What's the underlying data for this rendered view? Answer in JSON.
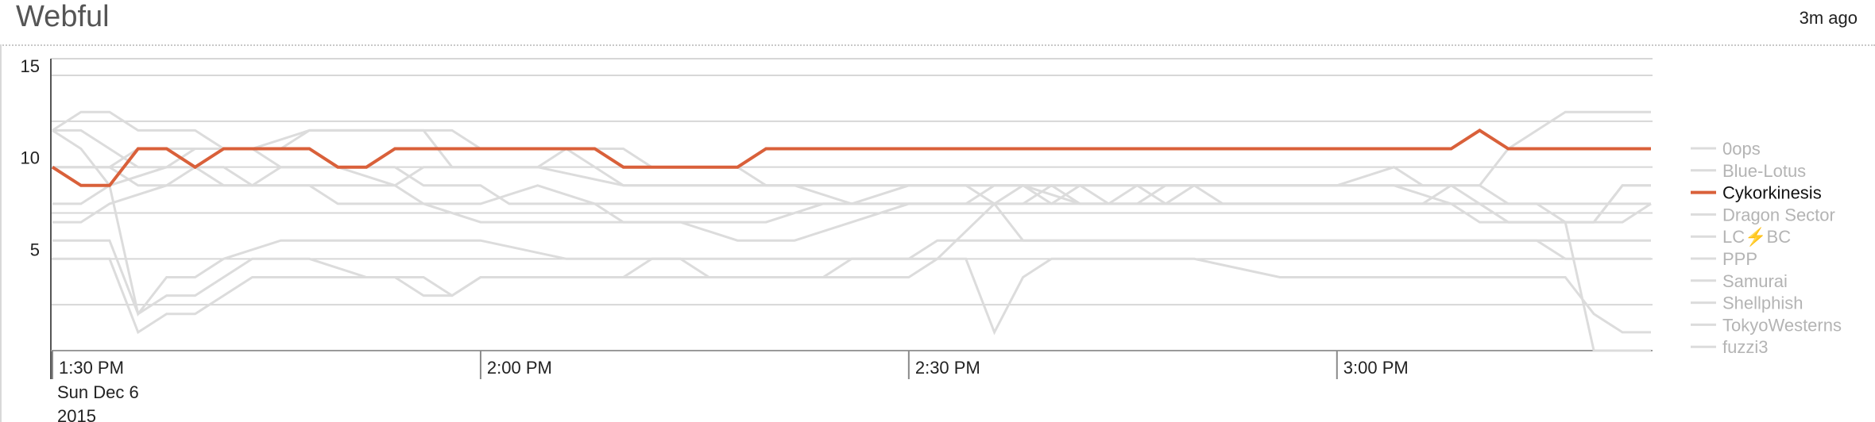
{
  "panel": {
    "title": "Webful",
    "updated": "3m ago"
  },
  "chart_data": {
    "type": "line",
    "ylim": [
      0,
      15
    ],
    "yticks": [
      5,
      10,
      15
    ],
    "x_start_minutes": 0,
    "x_end_minutes": 112,
    "xticks": [
      {
        "minute": 0,
        "label": "1:30 PM",
        "sub": [
          "Sun Dec 6",
          "2015"
        ]
      },
      {
        "minute": 30,
        "label": "2:00 PM",
        "sub": []
      },
      {
        "minute": 60,
        "label": "2:30 PM",
        "sub": []
      },
      {
        "minute": 90,
        "label": "3:00 PM",
        "sub": []
      }
    ],
    "highlight": "Cykorkinesis",
    "colors": {
      "highlight": "#d9603a",
      "muted": "#dcdcdc",
      "grid": "#d7d7d7",
      "axis": "#555555"
    },
    "legend_position": "right",
    "series": [
      {
        "name": "0ops",
        "points": [
          [
            0,
            12
          ],
          [
            2,
            11
          ],
          [
            4,
            9
          ],
          [
            6,
            2
          ],
          [
            8,
            4
          ],
          [
            10,
            4
          ],
          [
            12,
            5
          ],
          [
            16,
            6
          ],
          [
            30,
            6
          ],
          [
            36,
            5
          ],
          [
            48,
            5
          ],
          [
            60,
            5
          ],
          [
            62,
            6
          ],
          [
            70,
            6
          ],
          [
            80,
            6
          ],
          [
            90,
            6
          ],
          [
            100,
            6
          ],
          [
            104,
            6
          ],
          [
            106,
            5
          ],
          [
            108,
            5
          ],
          [
            110,
            5
          ],
          [
            112,
            5
          ]
        ]
      },
      {
        "name": "Blue-Lotus",
        "points": [
          [
            0,
            8
          ],
          [
            2,
            8
          ],
          [
            4,
            9
          ],
          [
            8,
            10
          ],
          [
            10,
            11
          ],
          [
            14,
            11
          ],
          [
            18,
            12
          ],
          [
            28,
            12
          ],
          [
            30,
            11
          ],
          [
            36,
            11
          ],
          [
            40,
            9
          ],
          [
            44,
            9
          ],
          [
            50,
            9
          ],
          [
            60,
            9
          ],
          [
            70,
            9
          ],
          [
            80,
            9
          ],
          [
            90,
            9
          ],
          [
            96,
            9
          ],
          [
            100,
            9
          ],
          [
            102,
            11
          ],
          [
            104,
            12
          ],
          [
            106,
            13
          ],
          [
            108,
            13
          ],
          [
            110,
            13
          ],
          [
            112,
            13
          ]
        ]
      },
      {
        "name": "Cykorkinesis",
        "points": [
          [
            0,
            10
          ],
          [
            2,
            9
          ],
          [
            4,
            9
          ],
          [
            6,
            11
          ],
          [
            8,
            11
          ],
          [
            10,
            10
          ],
          [
            12,
            11
          ],
          [
            18,
            11
          ],
          [
            20,
            10
          ],
          [
            22,
            10
          ],
          [
            24,
            11
          ],
          [
            38,
            11
          ],
          [
            40,
            10
          ],
          [
            48,
            10
          ],
          [
            50,
            11
          ],
          [
            98,
            11
          ],
          [
            100,
            12
          ],
          [
            102,
            11
          ],
          [
            112,
            11
          ]
        ]
      },
      {
        "name": "Dragon Sector",
        "points": [
          [
            0,
            12
          ],
          [
            2,
            13
          ],
          [
            4,
            13
          ],
          [
            6,
            12
          ],
          [
            10,
            12
          ],
          [
            12,
            11
          ],
          [
            16,
            11
          ],
          [
            18,
            12
          ],
          [
            26,
            12
          ],
          [
            28,
            10
          ],
          [
            30,
            10
          ],
          [
            34,
            10
          ],
          [
            36,
            11
          ],
          [
            40,
            11
          ],
          [
            42,
            10
          ],
          [
            48,
            10
          ],
          [
            50,
            9
          ],
          [
            60,
            9
          ],
          [
            70,
            9
          ],
          [
            80,
            9
          ],
          [
            84,
            9
          ],
          [
            86,
            9
          ],
          [
            90,
            9
          ],
          [
            94,
            10
          ],
          [
            96,
            9
          ],
          [
            100,
            9
          ],
          [
            102,
            8
          ],
          [
            104,
            8
          ],
          [
            106,
            8
          ],
          [
            108,
            8
          ],
          [
            110,
            8
          ],
          [
            112,
            8
          ]
        ]
      },
      {
        "name": "LC⚡BC",
        "points": [
          [
            0,
            10
          ],
          [
            4,
            10
          ],
          [
            6,
            11
          ],
          [
            10,
            11
          ],
          [
            14,
            11
          ],
          [
            16,
            10
          ],
          [
            20,
            10
          ],
          [
            24,
            9
          ],
          [
            26,
            8
          ],
          [
            30,
            8
          ],
          [
            34,
            9
          ],
          [
            38,
            8
          ],
          [
            40,
            7
          ],
          [
            44,
            7
          ],
          [
            50,
            7
          ],
          [
            54,
            8
          ],
          [
            60,
            8
          ],
          [
            64,
            8
          ],
          [
            66,
            9
          ],
          [
            68,
            9
          ],
          [
            72,
            8
          ],
          [
            76,
            8
          ],
          [
            78,
            9
          ],
          [
            80,
            9
          ],
          [
            82,
            8
          ],
          [
            84,
            8
          ],
          [
            88,
            8
          ],
          [
            92,
            8
          ],
          [
            96,
            8
          ],
          [
            98,
            9
          ],
          [
            100,
            8
          ],
          [
            102,
            7
          ],
          [
            104,
            7
          ],
          [
            106,
            7
          ],
          [
            108,
            7
          ],
          [
            110,
            9
          ],
          [
            112,
            9
          ]
        ]
      },
      {
        "name": "PPP",
        "points": [
          [
            0,
            10
          ],
          [
            4,
            10
          ],
          [
            6,
            9
          ],
          [
            8,
            9
          ],
          [
            10,
            10
          ],
          [
            12,
            10
          ],
          [
            14,
            9
          ],
          [
            18,
            9
          ],
          [
            24,
            9
          ],
          [
            26,
            10
          ],
          [
            30,
            10
          ],
          [
            34,
            10
          ],
          [
            40,
            9
          ],
          [
            44,
            9
          ],
          [
            48,
            9
          ],
          [
            52,
            9
          ],
          [
            56,
            8
          ],
          [
            60,
            9
          ],
          [
            64,
            9
          ],
          [
            66,
            8
          ],
          [
            68,
            9
          ],
          [
            70,
            8
          ],
          [
            72,
            9
          ],
          [
            74,
            8
          ],
          [
            76,
            9
          ],
          [
            78,
            8
          ],
          [
            80,
            9
          ],
          [
            82,
            9
          ],
          [
            86,
            9
          ],
          [
            90,
            9
          ],
          [
            94,
            9
          ],
          [
            98,
            8
          ],
          [
            100,
            7
          ],
          [
            104,
            7
          ],
          [
            106,
            7
          ],
          [
            108,
            7
          ],
          [
            110,
            7
          ],
          [
            112,
            8
          ]
        ]
      },
      {
        "name": "Samurai",
        "points": [
          [
            0,
            7
          ],
          [
            2,
            7
          ],
          [
            4,
            8
          ],
          [
            8,
            9
          ],
          [
            12,
            9
          ],
          [
            16,
            9
          ],
          [
            18,
            9
          ],
          [
            20,
            8
          ],
          [
            24,
            8
          ],
          [
            26,
            8
          ],
          [
            30,
            7
          ],
          [
            36,
            7
          ],
          [
            40,
            7
          ],
          [
            44,
            7
          ],
          [
            48,
            6
          ],
          [
            52,
            6
          ],
          [
            56,
            7
          ],
          [
            60,
            8
          ],
          [
            62,
            8
          ],
          [
            64,
            8
          ],
          [
            66,
            8
          ],
          [
            68,
            8
          ],
          [
            70,
            9
          ],
          [
            72,
            8
          ],
          [
            76,
            8
          ],
          [
            80,
            8
          ],
          [
            84,
            8
          ],
          [
            88,
            8
          ],
          [
            92,
            8
          ],
          [
            96,
            8
          ],
          [
            100,
            8
          ],
          [
            102,
            7
          ],
          [
            104,
            7
          ],
          [
            108,
            7
          ],
          [
            110,
            9
          ],
          [
            112,
            9
          ]
        ]
      },
      {
        "name": "Shellphish",
        "points": [
          [
            0,
            5
          ],
          [
            4,
            5
          ],
          [
            6,
            1
          ],
          [
            8,
            2
          ],
          [
            10,
            2
          ],
          [
            14,
            4
          ],
          [
            18,
            4
          ],
          [
            20,
            4
          ],
          [
            24,
            4
          ],
          [
            26,
            3
          ],
          [
            28,
            3
          ],
          [
            30,
            4
          ],
          [
            36,
            4
          ],
          [
            40,
            4
          ],
          [
            42,
            4
          ],
          [
            44,
            4
          ],
          [
            48,
            4
          ],
          [
            52,
            4
          ],
          [
            56,
            4
          ],
          [
            60,
            4
          ],
          [
            62,
            5
          ],
          [
            66,
            8
          ],
          [
            68,
            6
          ],
          [
            70,
            6
          ],
          [
            76,
            6
          ],
          [
            80,
            6
          ],
          [
            84,
            6
          ],
          [
            88,
            6
          ],
          [
            90,
            6
          ],
          [
            94,
            6
          ],
          [
            96,
            6
          ],
          [
            100,
            6
          ],
          [
            102,
            6
          ],
          [
            104,
            6
          ],
          [
            106,
            6
          ],
          [
            108,
            6
          ],
          [
            110,
            6
          ],
          [
            112,
            6
          ]
        ]
      },
      {
        "name": "TokyoWesterns",
        "points": [
          [
            0,
            6
          ],
          [
            4,
            6
          ],
          [
            6,
            2
          ],
          [
            8,
            3
          ],
          [
            10,
            3
          ],
          [
            14,
            5
          ],
          [
            18,
            5
          ],
          [
            22,
            4
          ],
          [
            24,
            4
          ],
          [
            26,
            4
          ],
          [
            28,
            3
          ],
          [
            30,
            4
          ],
          [
            34,
            4
          ],
          [
            38,
            4
          ],
          [
            40,
            4
          ],
          [
            42,
            5
          ],
          [
            44,
            5
          ],
          [
            46,
            4
          ],
          [
            50,
            4
          ],
          [
            54,
            4
          ],
          [
            56,
            5
          ],
          [
            60,
            5
          ],
          [
            62,
            5
          ],
          [
            64,
            5
          ],
          [
            66,
            1
          ],
          [
            68,
            4
          ],
          [
            70,
            5
          ],
          [
            74,
            5
          ],
          [
            80,
            5
          ],
          [
            86,
            4
          ],
          [
            90,
            4
          ],
          [
            96,
            4
          ],
          [
            100,
            4
          ],
          [
            104,
            4
          ],
          [
            106,
            4
          ],
          [
            108,
            2
          ],
          [
            110,
            1
          ],
          [
            112,
            1
          ]
        ]
      },
      {
        "name": "fuzzi3",
        "points": [
          [
            0,
            12
          ],
          [
            2,
            12
          ],
          [
            4,
            11
          ],
          [
            6,
            10
          ],
          [
            10,
            10
          ],
          [
            12,
            9
          ],
          [
            14,
            9
          ],
          [
            16,
            10
          ],
          [
            20,
            10
          ],
          [
            24,
            10
          ],
          [
            26,
            9
          ],
          [
            30,
            9
          ],
          [
            32,
            8
          ],
          [
            34,
            8
          ],
          [
            36,
            8
          ],
          [
            40,
            8
          ],
          [
            44,
            8
          ],
          [
            48,
            8
          ],
          [
            52,
            8
          ],
          [
            56,
            8
          ],
          [
            60,
            8
          ],
          [
            64,
            8
          ],
          [
            68,
            8
          ],
          [
            72,
            8
          ],
          [
            76,
            8
          ],
          [
            80,
            8
          ],
          [
            84,
            8
          ],
          [
            88,
            8
          ],
          [
            92,
            8
          ],
          [
            96,
            8
          ],
          [
            100,
            8
          ],
          [
            102,
            8
          ],
          [
            104,
            8
          ],
          [
            106,
            7
          ],
          [
            108,
            0
          ],
          [
            110,
            0
          ],
          [
            112,
            0
          ]
        ]
      }
    ]
  }
}
